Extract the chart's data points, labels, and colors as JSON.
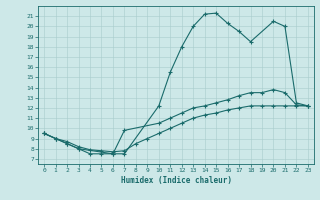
{
  "xlabel": "Humidex (Indice chaleur)",
  "xlim": [
    -0.5,
    23.5
  ],
  "ylim": [
    6.5,
    22
  ],
  "yticks": [
    7,
    8,
    9,
    10,
    11,
    12,
    13,
    14,
    15,
    16,
    17,
    18,
    19,
    20,
    21
  ],
  "xticks": [
    0,
    1,
    2,
    3,
    4,
    5,
    6,
    7,
    8,
    9,
    10,
    11,
    12,
    13,
    14,
    15,
    16,
    17,
    18,
    19,
    20,
    21,
    22,
    23
  ],
  "background_color": "#cde8e8",
  "line_color": "#1a6b6b",
  "grid_color": "#a8cccc",
  "line1_x": [
    0,
    1,
    2,
    3,
    4,
    5,
    6,
    7,
    10,
    11,
    12,
    13,
    14,
    15,
    16,
    17,
    18,
    20,
    21,
    22,
    23
  ],
  "line1_y": [
    9.5,
    9.0,
    8.5,
    8.0,
    7.5,
    7.5,
    7.5,
    7.5,
    12.2,
    15.5,
    18.0,
    20.0,
    21.2,
    21.3,
    20.3,
    19.5,
    18.5,
    20.5,
    20.0,
    12.5,
    12.2
  ],
  "line2_x": [
    0,
    1,
    2,
    3,
    6,
    7,
    10,
    11,
    12,
    13,
    14,
    15,
    16,
    17,
    18,
    19,
    20,
    21,
    22,
    23
  ],
  "line2_y": [
    9.5,
    9.0,
    8.5,
    8.0,
    7.5,
    9.8,
    10.5,
    11.0,
    11.5,
    12.0,
    12.2,
    12.5,
    12.8,
    13.2,
    13.5,
    13.5,
    13.8,
    13.5,
    12.3,
    12.2
  ],
  "line3_x": [
    0,
    1,
    2,
    3,
    4,
    5,
    6,
    7,
    8,
    9,
    10,
    11,
    12,
    13,
    14,
    15,
    16,
    17,
    18,
    19,
    20,
    21,
    22,
    23
  ],
  "line3_y": [
    9.5,
    9.0,
    8.7,
    8.2,
    7.9,
    7.8,
    7.7,
    7.8,
    8.5,
    9.0,
    9.5,
    10.0,
    10.5,
    11.0,
    11.3,
    11.5,
    11.8,
    12.0,
    12.2,
    12.2,
    12.2,
    12.2,
    12.2,
    12.2
  ]
}
